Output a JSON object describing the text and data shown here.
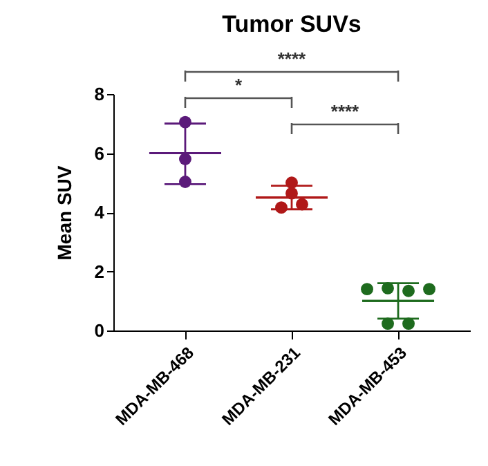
{
  "chart_data": {
    "type": "scatter",
    "title": "Tumor SUVs",
    "ylabel": "Mean SUV",
    "categories": [
      "MDA-MB-468",
      "MDA-MB-231",
      "MDA-MB-453"
    ],
    "ylim": [
      0,
      8
    ],
    "yticks": [
      0,
      2,
      4,
      6,
      8
    ],
    "grid": false,
    "marker": "circle",
    "annotations": [
      "****",
      "*",
      "****"
    ],
    "series": [
      {
        "type": "scatter",
        "color": "#5b1a7a",
        "x": [
          "MDA-MB-468",
          "MDA-MB-468",
          "MDA-MB-468"
        ],
        "values": [
          7.05,
          5.8,
          5.03
        ]
      },
      {
        "type": "scatter",
        "color": "#b01818",
        "x": [
          "MDA-MB-231",
          "MDA-MB-231",
          "MDA-MB-231",
          "MDA-MB-231"
        ],
        "values": [
          5.0,
          4.64,
          4.16,
          4.27
        ]
      },
      {
        "type": "scatter",
        "color": "#1e6b1e",
        "x": [
          "MDA-MB-453",
          "MDA-MB-453",
          "MDA-MB-453",
          "MDA-MB-453",
          "MDA-MB-453",
          "MDA-MB-453"
        ],
        "values": [
          1.4,
          1.43,
          1.34,
          1.4,
          0.23,
          0.23
        ]
      },
      {
        "type": "box",
        "colors": [
          "#5b1a7a",
          "#b01818",
          "#1e6b1e"
        ],
        "boxes": [
          {
            "low": 4.95,
            "q1": 6.0,
            "median": 6.0,
            "q3": 6.0,
            "high": 7.0
          },
          {
            "low": 4.1,
            "q1": 4.5,
            "median": 4.5,
            "q3": 4.5,
            "high": 4.9
          },
          {
            "low": 0.4,
            "q1": 1.0,
            "median": 1.0,
            "q3": 1.0,
            "high": 1.6
          }
        ]
      }
    ]
  }
}
